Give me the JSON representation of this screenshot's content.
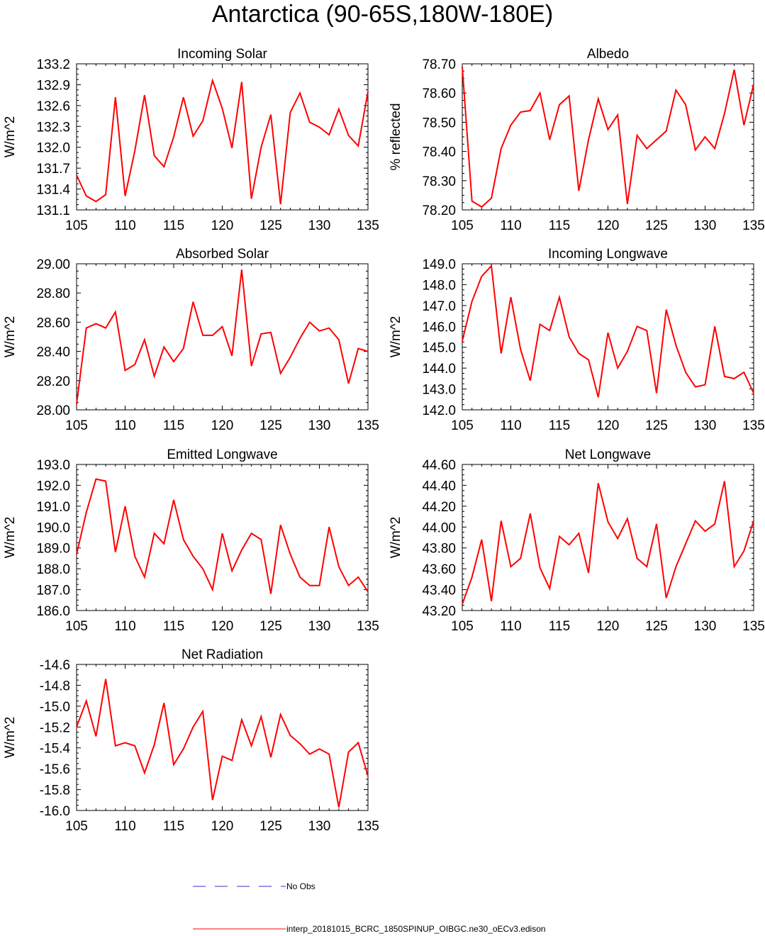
{
  "title": "Antarctica (90-65S,180W-180E)",
  "legend": {
    "obs_label": "No Obs",
    "model_label": "interp_20181015_BCRC_1850SPINUP_OIBGC.ne30_oECv3.edison",
    "obs_color": "#3333cc",
    "model_color": "#ff0000"
  },
  "chart_data": [
    {
      "type": "line",
      "title": "Incoming Solar",
      "ylabel": "W/m^2",
      "xlim": [
        105,
        135
      ],
      "xticks": [
        105,
        110,
        115,
        120,
        125,
        130,
        135
      ],
      "ylim": [
        131.1,
        133.2
      ],
      "yticks": [
        "131.1",
        "131.4",
        "131.7",
        "132.0",
        "132.3",
        "132.6",
        "132.9",
        "133.2"
      ],
      "x": [
        105,
        106,
        107,
        108,
        109,
        110,
        111,
        112,
        113,
        114,
        115,
        116,
        117,
        118,
        119,
        120,
        121,
        122,
        123,
        124,
        125,
        126,
        127,
        128,
        129,
        130,
        131,
        132,
        133,
        134,
        135
      ],
      "series": [
        {
          "color": "#ff0000",
          "values": [
            131.6,
            131.3,
            131.22,
            131.32,
            132.72,
            131.3,
            131.95,
            132.75,
            131.88,
            131.72,
            132.15,
            132.72,
            132.16,
            132.38,
            132.96,
            132.56,
            131.99,
            132.94,
            131.26,
            132.0,
            132.47,
            131.18,
            132.5,
            132.78,
            132.36,
            132.29,
            132.18,
            132.55,
            132.17,
            132.02,
            132.8
          ]
        }
      ]
    },
    {
      "type": "line",
      "title": "Albedo",
      "ylabel": "% reflected",
      "xlim": [
        105,
        135
      ],
      "xticks": [
        105,
        110,
        115,
        120,
        125,
        130,
        135
      ],
      "ylim": [
        78.2,
        78.7
      ],
      "yticks": [
        "78.20",
        "78.30",
        "78.40",
        "78.50",
        "78.60",
        "78.70"
      ],
      "x": [
        105,
        106,
        107,
        108,
        109,
        110,
        111,
        112,
        113,
        114,
        115,
        116,
        117,
        118,
        119,
        120,
        121,
        122,
        123,
        124,
        125,
        126,
        127,
        128,
        129,
        130,
        131,
        132,
        133,
        134,
        135
      ],
      "series": [
        {
          "color": "#ff0000",
          "values": [
            78.69,
            78.23,
            78.21,
            78.24,
            78.41,
            78.49,
            78.535,
            78.54,
            78.6,
            78.44,
            78.56,
            78.59,
            78.265,
            78.44,
            78.58,
            78.475,
            78.525,
            78.22,
            78.455,
            78.41,
            78.44,
            78.47,
            78.61,
            78.56,
            78.405,
            78.45,
            78.41,
            78.53,
            78.68,
            78.49,
            78.63
          ]
        }
      ]
    },
    {
      "type": "line",
      "title": "Absorbed Solar",
      "ylabel": "W/m^2",
      "xlim": [
        105,
        135
      ],
      "xticks": [
        105,
        110,
        115,
        120,
        125,
        130,
        135
      ],
      "ylim": [
        28.0,
        29.0
      ],
      "yticks": [
        "28.00",
        "28.20",
        "28.40",
        "28.60",
        "28.80",
        "29.00"
      ],
      "x": [
        105,
        106,
        107,
        108,
        109,
        110,
        111,
        112,
        113,
        114,
        115,
        116,
        117,
        118,
        119,
        120,
        121,
        122,
        123,
        124,
        125,
        126,
        127,
        128,
        129,
        130,
        131,
        132,
        133,
        134,
        135
      ],
      "series": [
        {
          "color": "#ff0000",
          "values": [
            28.04,
            28.56,
            28.59,
            28.56,
            28.67,
            28.27,
            28.31,
            28.48,
            28.23,
            28.43,
            28.33,
            28.42,
            28.74,
            28.51,
            28.51,
            28.57,
            28.37,
            28.96,
            28.3,
            28.52,
            28.53,
            28.25,
            28.36,
            28.49,
            28.6,
            28.54,
            28.56,
            28.48,
            28.18,
            28.42,
            28.4
          ]
        }
      ]
    },
    {
      "type": "line",
      "title": "Incoming Longwave",
      "ylabel": "W/m^2",
      "xlim": [
        105,
        135
      ],
      "xticks": [
        105,
        110,
        115,
        120,
        125,
        130,
        135
      ],
      "ylim": [
        142.0,
        149.0
      ],
      "yticks": [
        "142.0",
        "143.0",
        "144.0",
        "145.0",
        "146.0",
        "147.0",
        "148.0",
        "149.0"
      ],
      "x": [
        105,
        106,
        107,
        108,
        109,
        110,
        111,
        112,
        113,
        114,
        115,
        116,
        117,
        118,
        119,
        120,
        121,
        122,
        123,
        124,
        125,
        126,
        127,
        128,
        129,
        130,
        131,
        132,
        133,
        134,
        135
      ],
      "series": [
        {
          "color": "#ff0000",
          "values": [
            145.3,
            147.2,
            148.4,
            148.9,
            144.7,
            147.4,
            144.9,
            143.4,
            146.1,
            145.8,
            147.4,
            145.5,
            144.7,
            144.4,
            142.6,
            145.7,
            144.0,
            144.8,
            146.0,
            145.8,
            142.8,
            146.8,
            145.1,
            143.8,
            143.1,
            143.2,
            146.0,
            143.6,
            143.5,
            143.8,
            142.8
          ]
        }
      ]
    },
    {
      "type": "line",
      "title": "Emitted Longwave",
      "ylabel": "W/m^2",
      "xlim": [
        105,
        135
      ],
      "xticks": [
        105,
        110,
        115,
        120,
        125,
        130,
        135
      ],
      "ylim": [
        186.0,
        193.0
      ],
      "yticks": [
        "186.0",
        "187.0",
        "188.0",
        "189.0",
        "190.0",
        "191.0",
        "192.0",
        "193.0"
      ],
      "x": [
        105,
        106,
        107,
        108,
        109,
        110,
        111,
        112,
        113,
        114,
        115,
        116,
        117,
        118,
        119,
        120,
        121,
        122,
        123,
        124,
        125,
        126,
        127,
        128,
        129,
        130,
        131,
        132,
        133,
        134,
        135
      ],
      "series": [
        {
          "color": "#ff0000",
          "values": [
            188.7,
            190.7,
            192.3,
            192.2,
            188.8,
            191.0,
            188.6,
            187.6,
            189.7,
            189.2,
            191.3,
            189.4,
            188.6,
            188.0,
            187.0,
            189.7,
            187.9,
            188.9,
            189.7,
            189.4,
            186.8,
            190.1,
            188.7,
            187.6,
            187.2,
            187.2,
            190.0,
            188.1,
            187.2,
            187.6,
            186.9
          ]
        }
      ]
    },
    {
      "type": "line",
      "title": "Net Longwave",
      "ylabel": "W/m^2",
      "xlim": [
        105,
        135
      ],
      "xticks": [
        105,
        110,
        115,
        120,
        125,
        130,
        135
      ],
      "ylim": [
        43.2,
        44.6
      ],
      "yticks": [
        "43.20",
        "43.40",
        "43.60",
        "43.80",
        "44.00",
        "44.20",
        "44.40",
        "44.60"
      ],
      "x": [
        105,
        106,
        107,
        108,
        109,
        110,
        111,
        112,
        113,
        114,
        115,
        116,
        117,
        118,
        119,
        120,
        121,
        122,
        123,
        124,
        125,
        126,
        127,
        128,
        129,
        130,
        131,
        132,
        133,
        134,
        135
      ],
      "series": [
        {
          "color": "#ff0000",
          "values": [
            43.26,
            43.52,
            43.88,
            43.29,
            44.06,
            43.62,
            43.7,
            44.13,
            43.61,
            43.41,
            43.91,
            43.83,
            43.94,
            43.56,
            44.42,
            44.05,
            43.89,
            44.08,
            43.7,
            43.62,
            44.03,
            43.32,
            43.62,
            43.84,
            44.06,
            43.96,
            44.03,
            44.44,
            43.62,
            43.77,
            44.06
          ]
        }
      ]
    },
    {
      "type": "line",
      "title": "Net Radiation",
      "ylabel": "W/m^2",
      "xlim": [
        105,
        135
      ],
      "xticks": [
        105,
        110,
        115,
        120,
        125,
        130,
        135
      ],
      "ylim": [
        -16.0,
        -14.6
      ],
      "yticks": [
        "-16.0",
        "-15.8",
        "-15.6",
        "-15.4",
        "-15.2",
        "-15.0",
        "-14.8",
        "-14.6"
      ],
      "x": [
        105,
        106,
        107,
        108,
        109,
        110,
        111,
        112,
        113,
        114,
        115,
        116,
        117,
        118,
        119,
        120,
        121,
        122,
        123,
        124,
        125,
        126,
        127,
        128,
        129,
        130,
        131,
        132,
        133,
        134,
        135
      ],
      "series": [
        {
          "color": "#ff0000",
          "values": [
            -15.2,
            -14.95,
            -15.29,
            -14.74,
            -15.38,
            -15.35,
            -15.38,
            -15.64,
            -15.37,
            -14.97,
            -15.56,
            -15.41,
            -15.2,
            -15.05,
            -15.9,
            -15.48,
            -15.52,
            -15.13,
            -15.38,
            -15.1,
            -15.49,
            -15.08,
            -15.28,
            -15.36,
            -15.46,
            -15.41,
            -15.46,
            -15.97,
            -15.44,
            -15.35,
            -15.67
          ]
        }
      ]
    }
  ]
}
